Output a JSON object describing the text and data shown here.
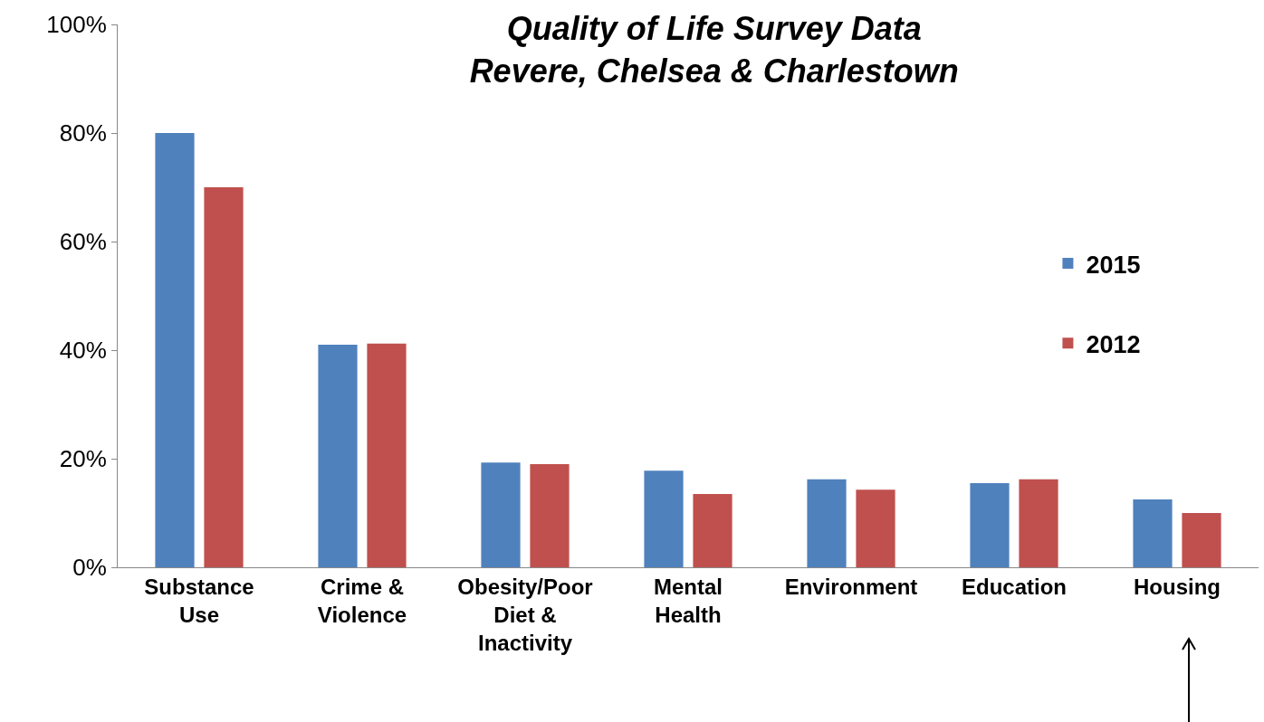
{
  "chart_data": {
    "type": "bar",
    "title": "Quality of Life Survey Data\nRevere, Chelsea & Charlestown",
    "categories": [
      "Substance\nUse",
      "Crime &\nViolence",
      "Obesity/Poor\nDiet &\nInactivity",
      "Mental\nHealth",
      "Environment",
      "Education",
      "Housing"
    ],
    "series": [
      {
        "name": "2015",
        "color": "#4f81bd",
        "values": [
          80,
          41,
          19.3,
          17.8,
          16.2,
          15.5,
          12.5
        ]
      },
      {
        "name": "2012",
        "color": "#c0504d",
        "values": [
          70,
          41.2,
          19,
          13.5,
          14.3,
          16.2,
          10
        ]
      }
    ],
    "ylim": [
      0,
      100
    ],
    "yticks": [
      {
        "value": 0,
        "label": "0%"
      },
      {
        "value": 20,
        "label": "20%"
      },
      {
        "value": 40,
        "label": "40%"
      },
      {
        "value": 60,
        "label": "60%"
      },
      {
        "value": 80,
        "label": "80%"
      },
      {
        "value": 100,
        "label": "100%"
      }
    ],
    "grid": false,
    "legend": "right"
  }
}
